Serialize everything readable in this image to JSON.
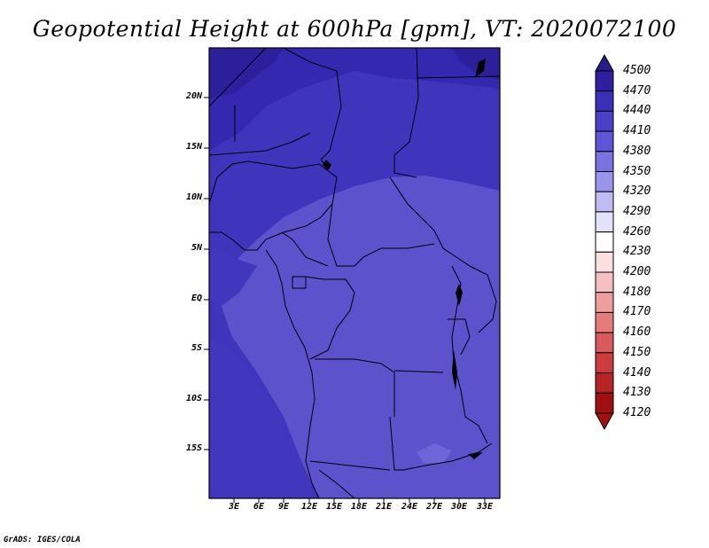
{
  "title": "Geopotential Height at 600hPa [gpm], VT: 2020072100",
  "credit": "GrADS: IGES/COLA",
  "lat_labels": [
    "20N",
    "15N",
    "10N",
    "5N",
    "EQ",
    "5S",
    "10S",
    "15S"
  ],
  "lon_labels": [
    "3E",
    "6E",
    "9E",
    "12E",
    "15E",
    "18E",
    "21E",
    "24E",
    "27E",
    "30E",
    "33E"
  ],
  "colorbar": {
    "levels": [
      "4500",
      "4470",
      "4440",
      "4410",
      "4380",
      "4350",
      "4320",
      "4290",
      "4260",
      "4230",
      "4200",
      "4180",
      "4170",
      "4160",
      "4150",
      "4140",
      "4130",
      "4120"
    ],
    "colors": [
      "#2a1a8a",
      "#2f1fa0",
      "#3a2fb8",
      "#4a40c8",
      "#5e56d6",
      "#7a72e0",
      "#9a94ea",
      "#c0bcf2",
      "#e4e2fa",
      "#ffffff",
      "#fae0e0",
      "#f6c0c0",
      "#ee9e9e",
      "#e47c7c",
      "#d85a5a",
      "#cc3c3c",
      "#b82424",
      "#a01010"
    ]
  },
  "map_colors": {
    "deep": "#3226a6",
    "mid": "#3f34bc",
    "shallow": "#5248c6",
    "light": "#6660d4",
    "lighter": "#7068da"
  }
}
